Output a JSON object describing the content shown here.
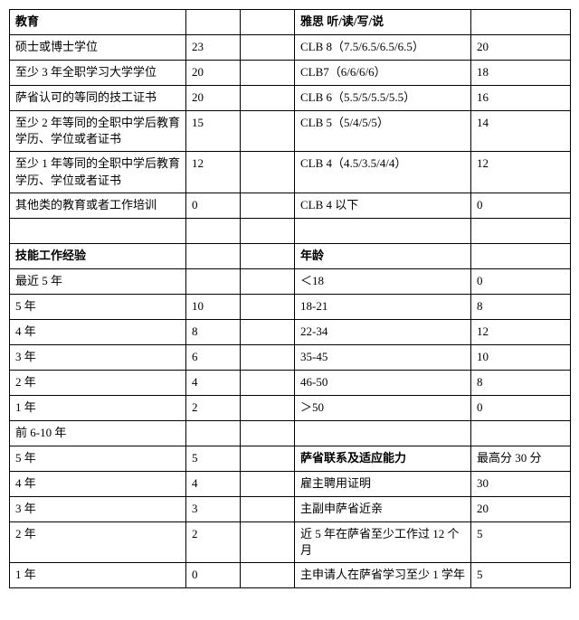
{
  "table": {
    "colors": {
      "border": "#000000",
      "text": "#000000",
      "background": "#ffffff"
    },
    "font_family": "SimSun",
    "font_size": 13,
    "columns": [
      195,
      60,
      60,
      195,
      110
    ],
    "rows": [
      {
        "c1": "教育",
        "c1_bold": true,
        "c2": "",
        "c3": "",
        "c4": "雅思 听/读/写/说",
        "c4_bold": true,
        "c5": ""
      },
      {
        "c1": "硕士或博士学位",
        "c2": "23",
        "c3": "",
        "c4": "CLB 8（7.5/6.5/6.5/6.5）",
        "c5": "20"
      },
      {
        "c1": "至少 3 年全职学习大学学位",
        "c2": "20",
        "c3": "",
        "c4": "CLB7（6/6/6/6）",
        "c5": "18"
      },
      {
        "c1": "萨省认可的等同的技工证书",
        "c2": "20",
        "c3": "",
        "c4": "CLB 6（5.5/5/5.5/5.5）",
        "c5": "16"
      },
      {
        "c1": "至少 2 年等同的全职中学后教育学历、学位或者证书",
        "c2": "15",
        "c3": "",
        "c4": "CLB 5（5/4/5/5）",
        "c5": "14"
      },
      {
        "c1": "至少 1 年等同的全职中学后教育学历、学位或者证书",
        "c2": "12",
        "c3": "",
        "c4": "CLB 4（4.5/3.5/4/4）",
        "c5": "12"
      },
      {
        "c1": "其他类的教育或者工作培训",
        "c2": "0",
        "c3": "",
        "c4": "CLB 4 以下",
        "c5": "0"
      },
      {
        "c1": "",
        "c2": "",
        "c3": "",
        "c4": "",
        "c5": ""
      },
      {
        "c1": "技能工作经验",
        "c1_bold": true,
        "c2": "",
        "c3": "",
        "c4": "年龄",
        "c4_bold": true,
        "c5": ""
      },
      {
        "c1": "最近 5 年",
        "c2": "",
        "c3": "",
        "c4": "＜18",
        "c5": "0"
      },
      {
        "c1": "5 年",
        "c2": "10",
        "c3": "",
        "c4": "18-21",
        "c5": "8"
      },
      {
        "c1": "4 年",
        "c2": "8",
        "c3": "",
        "c4": "22-34",
        "c5": "12"
      },
      {
        "c1": "3 年",
        "c2": "6",
        "c3": "",
        "c4": "35-45",
        "c5": "10"
      },
      {
        "c1": "2 年",
        "c2": "4",
        "c3": "",
        "c4": "46-50",
        "c5": "8"
      },
      {
        "c1": "1 年",
        "c2": "2",
        "c3": "",
        "c4": "＞50",
        "c5": "0"
      },
      {
        "c1": "前 6-10 年",
        "c2": "",
        "c3": "",
        "c4": "",
        "c5": ""
      },
      {
        "c1": "5 年",
        "c2": "5",
        "c3": "",
        "c4": "萨省联系及适应能力",
        "c4_bold": true,
        "c5": "最高分 30 分"
      },
      {
        "c1": "4 年",
        "c2": "4",
        "c3": "",
        "c4": "雇主聘用证明",
        "c5": "30"
      },
      {
        "c1": "3 年",
        "c2": "3",
        "c3": "",
        "c4": "主副申萨省近亲",
        "c5": "20"
      },
      {
        "c1": "2 年",
        "c2": "2",
        "c3": "",
        "c4": "近 5 年在萨省至少工作过 12 个月",
        "c5": "5"
      },
      {
        "c1": "1 年",
        "c2": "0",
        "c3": "",
        "c4": "主申请人在萨省学习至少 1 学年",
        "c5": "5"
      }
    ]
  }
}
